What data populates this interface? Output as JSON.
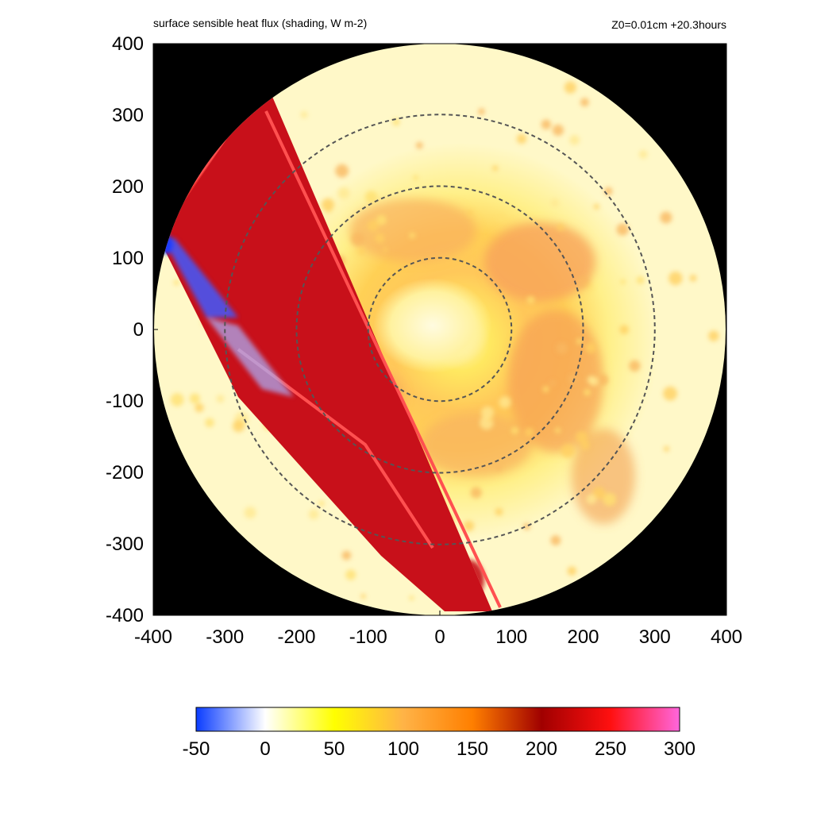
{
  "header": {
    "title": "surface sensible heat flux (shading, W m-2)",
    "run_info": "Z0=0.01cm  +20.3hours"
  },
  "chart_data": {
    "type": "heatmap",
    "title": "surface sensible heat flux (shading, W m-2)",
    "annotation": "Z0=0.01cm  +20.3hours",
    "xlabel": "",
    "ylabel": "",
    "xlim": [
      -400,
      400
    ],
    "ylim": [
      -400,
      400
    ],
    "x_ticks": [
      -400,
      -300,
      -200,
      -100,
      0,
      100,
      200,
      300,
      400
    ],
    "y_ticks": [
      400,
      300,
      200,
      100,
      0,
      -100,
      -200,
      -300,
      -400
    ],
    "domain_radius": 400,
    "outside_domain_color": "#000000",
    "reference_circles": {
      "radii": [
        100,
        200,
        300
      ],
      "style": "dashed",
      "color": "#555555"
    },
    "colorbar": {
      "range": [
        -50,
        300
      ],
      "ticks": [
        "-50",
        "0",
        "50",
        "100",
        "150",
        "200",
        "250",
        "300"
      ],
      "colors": [
        {
          "value": -50,
          "color": "#0a3cff"
        },
        {
          "value": 0,
          "color": "#ffffff"
        },
        {
          "value": 50,
          "color": "#ffff00"
        },
        {
          "value": 100,
          "color": "#ffb347"
        },
        {
          "value": 150,
          "color": "#ff7f00"
        },
        {
          "value": 200,
          "color": "#a00000"
        },
        {
          "value": 250,
          "color": "#ff1010"
        },
        {
          "value": 300,
          "color": "#ff66dd"
        }
      ]
    },
    "field_features": {
      "background_flux": 15,
      "eye_center": [
        0,
        0
      ],
      "eye_flux": 20,
      "rainband_annulus_flux": 110,
      "wedge_flux": 240,
      "negative_streak_flux": -40
    }
  }
}
